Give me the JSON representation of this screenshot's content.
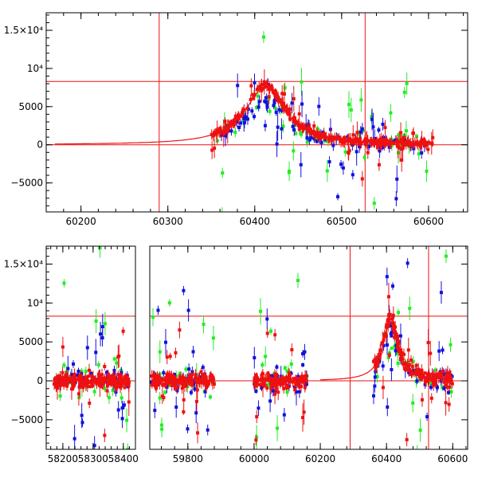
{
  "colors": {
    "red": "#ee1111",
    "green": "#22ee22",
    "blue": "#1111dd",
    "frame": "#000000",
    "background": "#ffffff"
  },
  "chart_data": [
    {
      "type": "scatter",
      "title": "",
      "xlabel": "",
      "ylabel": "",
      "xlim": [
        60160,
        60645
      ],
      "ylim": [
        -8800,
        17300
      ],
      "grid": false,
      "legend": "none",
      "xticks": [
        {
          "value": 60200,
          "label": "60200"
        },
        {
          "value": 60300,
          "label": "60300"
        },
        {
          "value": 60400,
          "label": "60400"
        },
        {
          "value": 60500,
          "label": "60500"
        },
        {
          "value": 60600,
          "label": "60600"
        }
      ],
      "yticks": [
        {
          "value": -5000,
          "label": "−5000"
        },
        {
          "value": 0,
          "label": "0"
        },
        {
          "value": 5000,
          "label": "5000"
        },
        {
          "value": 10000,
          "label": "10⁴"
        },
        {
          "value": 15000,
          "label": "1.5×10⁴"
        }
      ],
      "reference_lines": [
        {
          "axis": "y",
          "value": 0,
          "color": "#ee1111"
        },
        {
          "axis": "y",
          "value": 8300,
          "color": "#ee1111"
        },
        {
          "axis": "x",
          "value": 60290,
          "color": "#ee1111"
        },
        {
          "axis": "x",
          "value": 60527,
          "color": "#ee1111"
        }
      ],
      "model_curve": {
        "color": "#ee1111",
        "peak_x": 60412,
        "peak_y": 7600,
        "width": 28,
        "x_start": 60170,
        "x_end": 60600
      },
      "series": [
        {
          "color": "#ee1111",
          "segments": [
            [
              60350,
              60605
            ]
          ],
          "peak_x": 60412,
          "peak_y": 7800,
          "width": 28,
          "count": 320,
          "noise": 350,
          "outliers": 45
        },
        {
          "color": "#22ee22",
          "segments": [
            [
              60355,
              60600
            ]
          ],
          "peak_x": 60412,
          "peak_y": 5400,
          "width": 28,
          "count": 45,
          "noise": 1500,
          "outliers": 25
        },
        {
          "color": "#1111dd",
          "segments": [
            [
              60360,
              60600
            ]
          ],
          "peak_x": 60412,
          "peak_y": 5800,
          "width": 28,
          "count": 80,
          "noise": 1000,
          "outliers": 35
        }
      ]
    },
    {
      "type": "scatter",
      "title": "",
      "xlabel": "",
      "ylabel": "",
      "broken_axis": true,
      "panels": [
        {
          "xlim": [
            58145,
            58440
          ],
          "xticks": [
            {
              "value": 58200,
              "label": "58200"
            },
            {
              "value": 58300,
              "label": "58300"
            },
            {
              "value": 58400,
              "label": "58400"
            }
          ]
        },
        {
          "xlim": [
            59685,
            60645
          ],
          "xticks": [
            {
              "value": 59800,
              "label": "59800"
            },
            {
              "value": 60000,
              "label": "60000"
            },
            {
              "value": 60200,
              "label": "60200"
            },
            {
              "value": 60400,
              "label": "60400"
            },
            {
              "value": 60600,
              "label": "60600"
            }
          ]
        }
      ],
      "ylim": [
        -8800,
        17300
      ],
      "grid": false,
      "legend": "none",
      "yticks": [
        {
          "value": -5000,
          "label": "−5000"
        },
        {
          "value": 0,
          "label": "0"
        },
        {
          "value": 5000,
          "label": "5000"
        },
        {
          "value": 10000,
          "label": "10⁴"
        },
        {
          "value": 15000,
          "label": "1.5×10⁴"
        }
      ],
      "reference_lines": [
        {
          "axis": "y",
          "value": 0,
          "color": "#ee1111"
        },
        {
          "axis": "y",
          "value": 8300,
          "color": "#ee1111"
        },
        {
          "axis": "x",
          "value": 60290,
          "color": "#ee1111"
        },
        {
          "axis": "x",
          "value": 60527,
          "color": "#ee1111"
        }
      ],
      "model_curve": {
        "color": "#ee1111",
        "peak_x": 60412,
        "peak_y": 7600,
        "width": 28,
        "x_start": 60200,
        "x_end": 60600
      },
      "series": [
        {
          "color": "#ee1111",
          "segments": [
            [
              58170,
              58420
            ],
            [
              59690,
              59880
            ],
            [
              60000,
              60160
            ],
            [
              60360,
              60600
            ]
          ],
          "peak_x": 60412,
          "peak_y": 7800,
          "width": 28,
          "count": 600,
          "noise": 900,
          "outliers": 60
        },
        {
          "color": "#22ee22",
          "segments": [
            [
              58170,
              58420
            ],
            [
              59690,
              59880
            ],
            [
              60000,
              60160
            ],
            [
              60360,
              60600
            ]
          ],
          "peak_x": 60412,
          "peak_y": 5400,
          "width": 28,
          "count": 80,
          "noise": 2200,
          "outliers": 40
        },
        {
          "color": "#1111dd",
          "segments": [
            [
              58170,
              58420
            ],
            [
              59690,
              59880
            ],
            [
              60000,
              60160
            ],
            [
              60360,
              60600
            ]
          ],
          "peak_x": 60412,
          "peak_y": 5800,
          "width": 28,
          "count": 140,
          "noise": 1600,
          "outliers": 55
        }
      ]
    }
  ]
}
